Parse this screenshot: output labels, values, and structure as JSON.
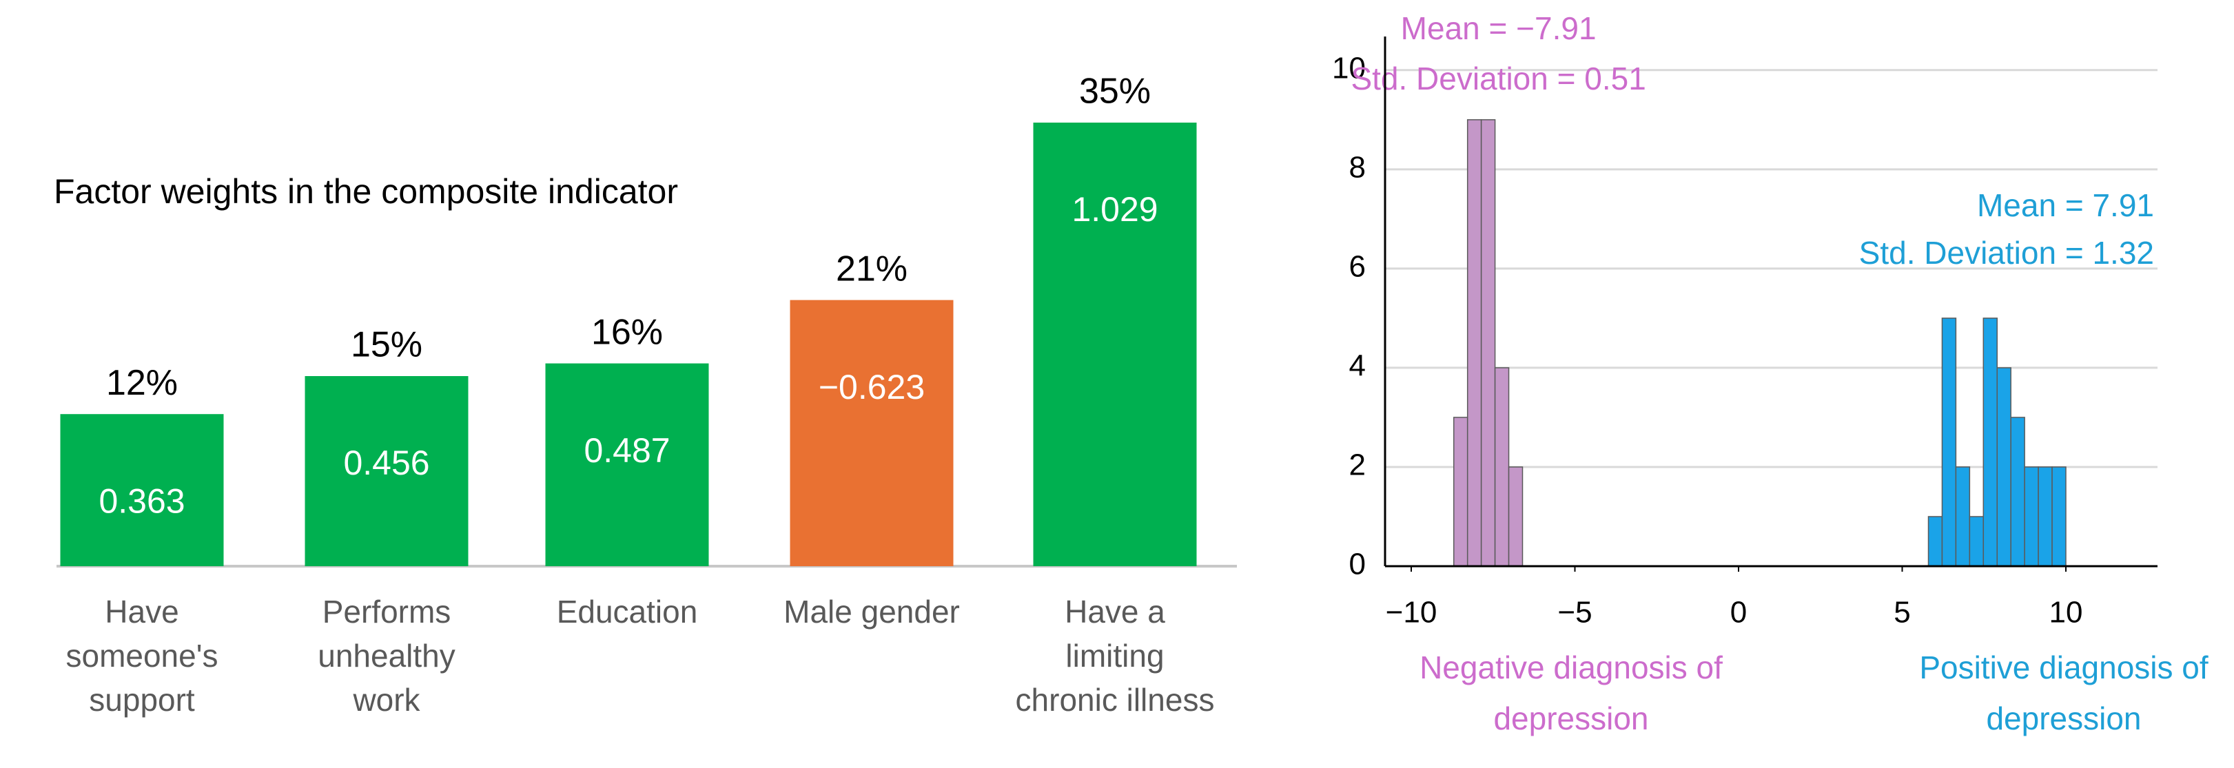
{
  "chart_data": [
    {
      "type": "bar",
      "title": "Factor weights in the composite indicator",
      "categories": [
        [
          "Have",
          "someone's",
          "support"
        ],
        [
          "Performs",
          "unhealthy",
          "work"
        ],
        [
          "Education"
        ],
        [
          "Male gender"
        ],
        [
          "Have a",
          "limiting",
          "chronic illness"
        ]
      ],
      "values": [
        12,
        15,
        16,
        21,
        35
      ],
      "value_labels": [
        "12%",
        "15%",
        "16%",
        "21%",
        "35%"
      ],
      "coefficients": [
        0.363,
        0.456,
        0.487,
        -0.623,
        1.029
      ],
      "coefficient_labels": [
        "0.363",
        "0.456",
        "0.487",
        "−0.623",
        "1.029"
      ],
      "color": "#00b050",
      "negative_color": "#e97132"
    },
    {
      "type": "histogram",
      "xlim": [
        -10.8,
        12.8
      ],
      "xticks": [
        {
          "value": -10,
          "label": "−10"
        },
        {
          "value": -5,
          "label": "−5"
        },
        0,
        5,
        10
      ],
      "ylim": [
        0,
        10.4
      ],
      "yticks": [
        0,
        2,
        4,
        6,
        8,
        10
      ],
      "grid": true,
      "series": [
        {
          "name": [
            "Negative diagnosis of",
            "depression"
          ],
          "color": "#c497c8",
          "text_color": "#cc6ccc",
          "annotation": [
            "Mean = −7.91",
            "Std. Deviation = 0.51"
          ],
          "bins": [
            -8.7,
            -8.28,
            -7.86,
            -7.44,
            -7.02,
            -6.6
          ],
          "values": [
            3,
            9,
            9,
            4,
            2
          ]
        },
        {
          "name": [
            "Positive diagnosis of",
            "depression"
          ],
          "color": "#1aa3e8",
          "text_color": "#1e9fd6",
          "annotation": [
            "Mean = 7.91",
            "Std. Deviation = 1.32"
          ],
          "bins": [
            5.8,
            6.22,
            6.64,
            7.06,
            7.48,
            7.9,
            8.32,
            8.74,
            9.16,
            9.58,
            10.0
          ],
          "values": [
            1,
            5,
            2,
            1,
            5,
            4,
            3,
            2,
            2,
            2
          ]
        }
      ]
    }
  ]
}
